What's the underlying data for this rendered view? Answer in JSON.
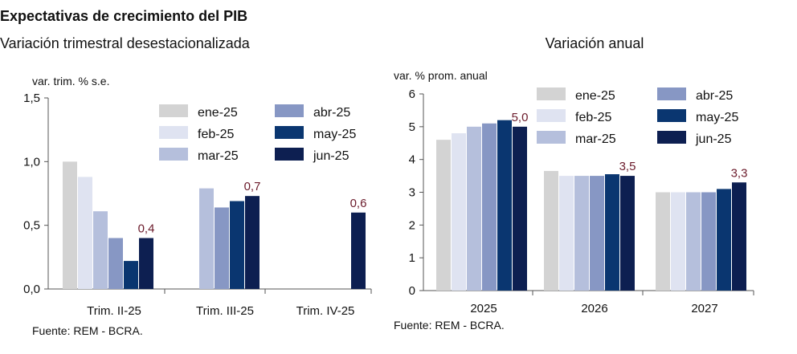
{
  "header": {
    "main_title": "Expectativas de crecimiento del PIB"
  },
  "colors": {
    "ene-25": "#d3d3d3",
    "feb-25": "#dfe3f1",
    "mar-25": "#b5bfdc",
    "abr-25": "#8797c4",
    "may-25": "#0a3670",
    "jun-25": "#0d1f51",
    "label": "#6b1b2b"
  },
  "chart_data": [
    {
      "type": "bar",
      "title": "Variación trimestral desestacionalizada",
      "ylabel": "var. trim. % s.e.",
      "ylim": [
        0,
        1.5
      ],
      "yticks": [
        "0,0",
        "0,5",
        "1,0",
        "1,5"
      ],
      "ytick_values": [
        0,
        0.5,
        1.0,
        1.5
      ],
      "categories": [
        "Trim. II-25",
        "Trim. III-25",
        "Trim. IV-25"
      ],
      "series": [
        {
          "name": "ene-25",
          "values": [
            1.0,
            null,
            null
          ]
        },
        {
          "name": "feb-25",
          "values": [
            0.88,
            null,
            null
          ]
        },
        {
          "name": "mar-25",
          "values": [
            0.61,
            0.79,
            null
          ]
        },
        {
          "name": "abr-25",
          "values": [
            0.4,
            0.64,
            null
          ]
        },
        {
          "name": "may-25",
          "values": [
            0.22,
            0.69,
            null
          ]
        },
        {
          "name": "jun-25",
          "values": [
            0.4,
            0.73,
            0.6
          ]
        }
      ],
      "data_labels": [
        "0,4",
        "0,7",
        "0,6"
      ],
      "legend_position": "top-right",
      "source": "Fuente: REM - BCRA."
    },
    {
      "type": "bar",
      "title": "Variación anual",
      "ylabel": "var. % prom. anual",
      "ylim": [
        0,
        6
      ],
      "yticks": [
        "0",
        "1",
        "2",
        "3",
        "4",
        "5",
        "6"
      ],
      "ytick_values": [
        0,
        1,
        2,
        3,
        4,
        5,
        6
      ],
      "categories": [
        "2025",
        "2026",
        "2027"
      ],
      "series": [
        {
          "name": "ene-25",
          "values": [
            4.6,
            3.65,
            3.0
          ]
        },
        {
          "name": "feb-25",
          "values": [
            4.8,
            3.5,
            3.0
          ]
        },
        {
          "name": "mar-25",
          "values": [
            5.0,
            3.5,
            3.0
          ]
        },
        {
          "name": "abr-25",
          "values": [
            5.1,
            3.5,
            3.0
          ]
        },
        {
          "name": "may-25",
          "values": [
            5.2,
            3.55,
            3.1
          ]
        },
        {
          "name": "jun-25",
          "values": [
            5.0,
            3.5,
            3.3
          ]
        }
      ],
      "data_labels": [
        "5,0",
        "3,5",
        "3,3"
      ],
      "legend_position": "top",
      "source": "Fuente: REM - BCRA."
    }
  ]
}
